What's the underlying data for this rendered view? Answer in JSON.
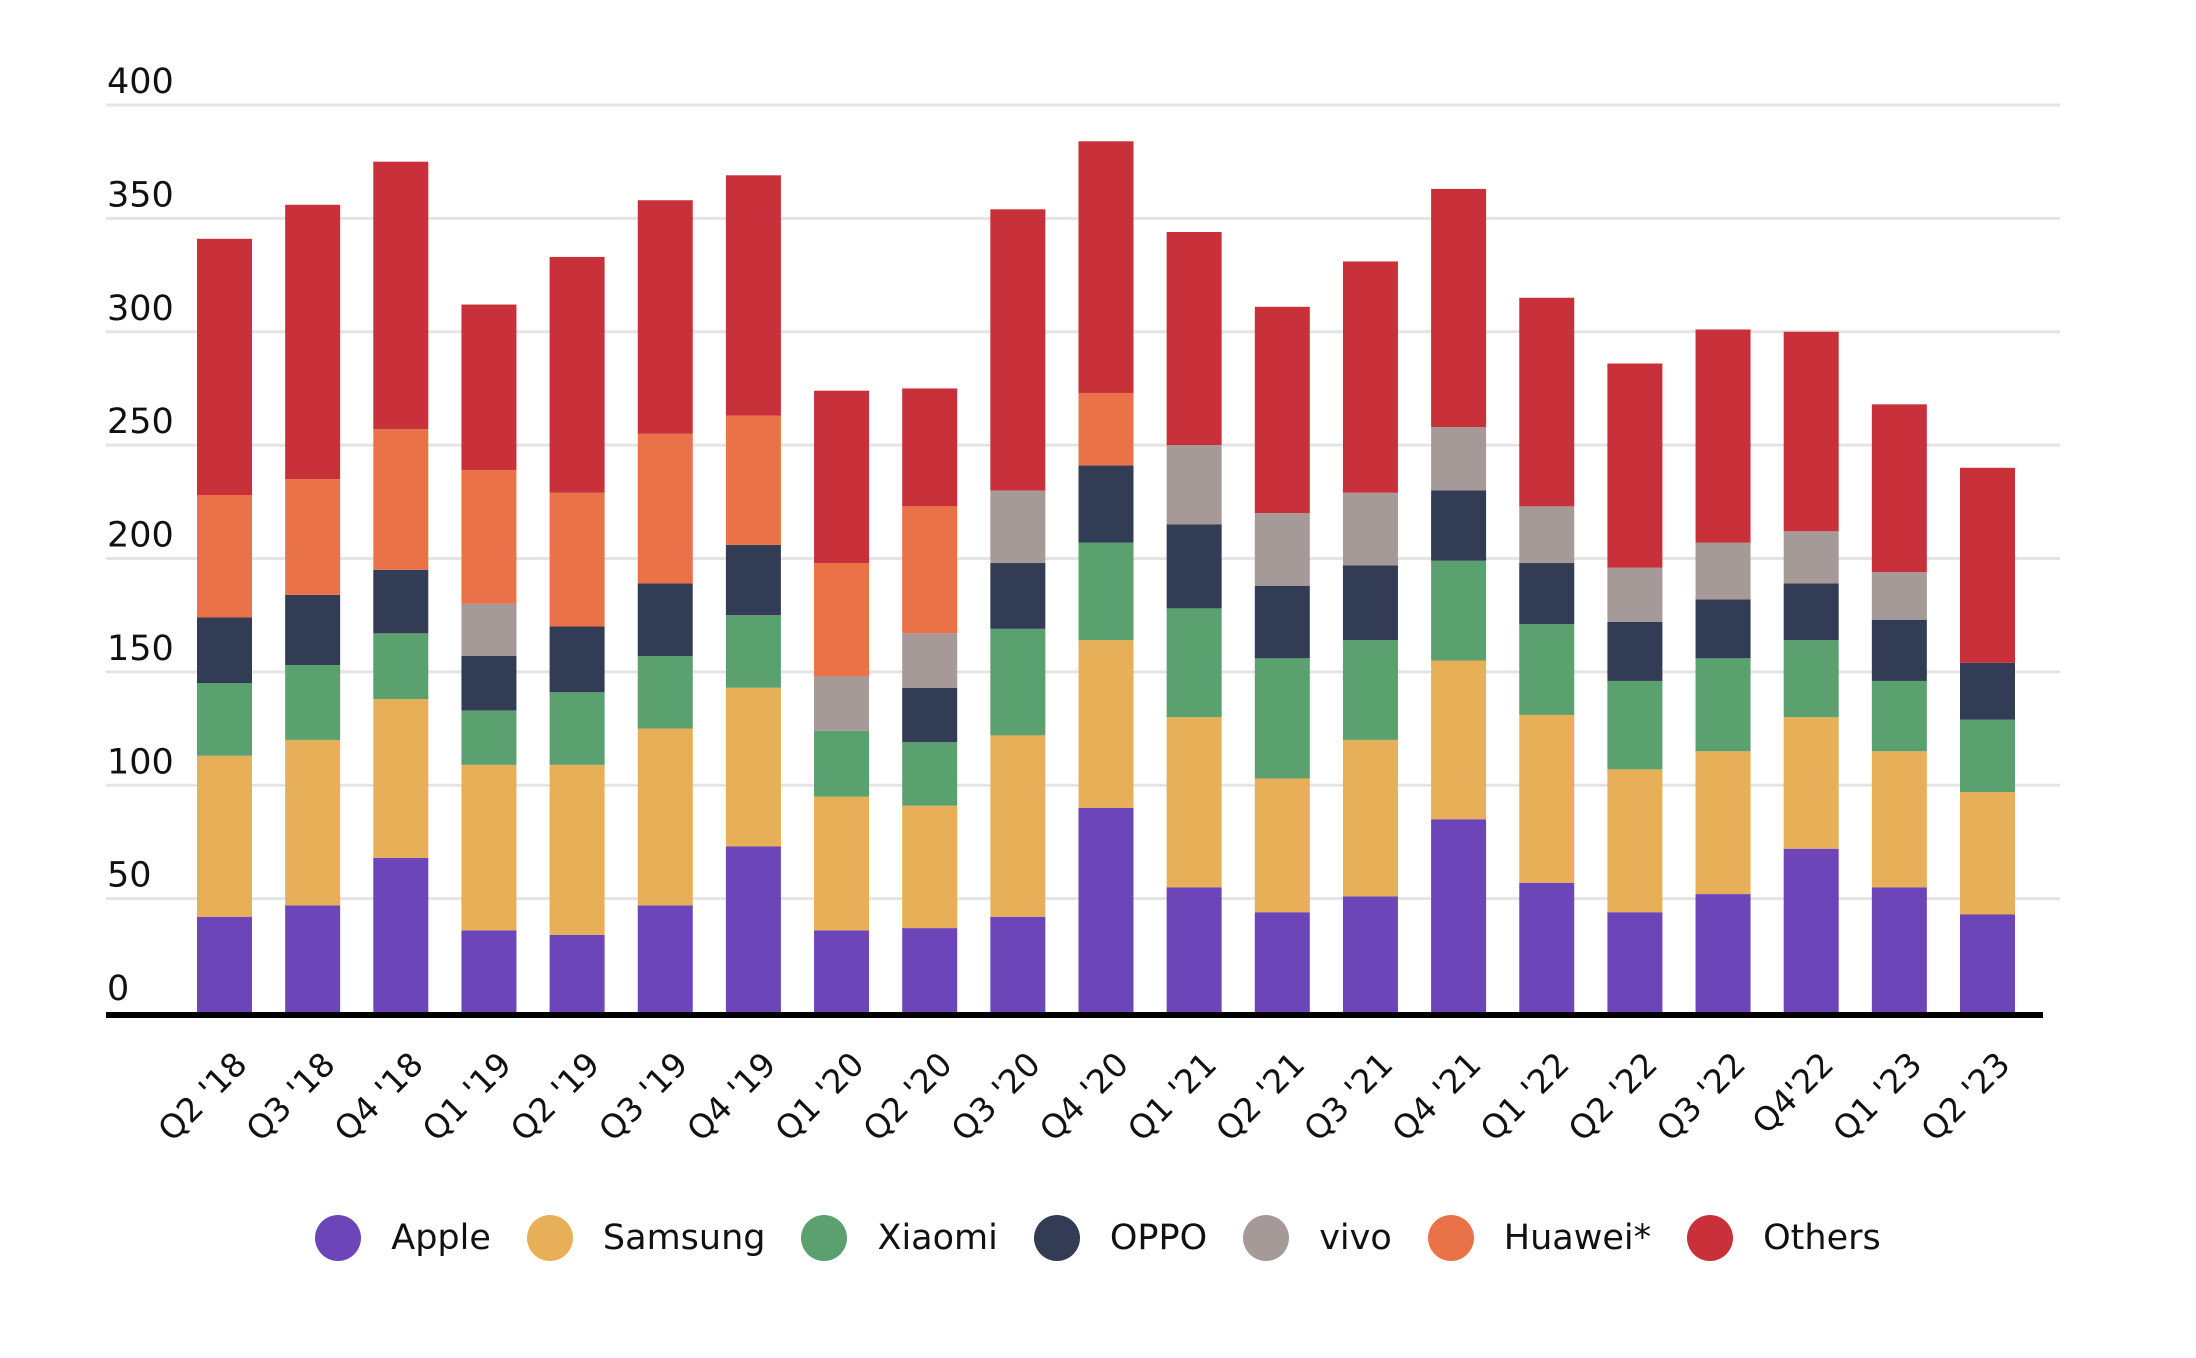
{
  "chart_data": {
    "type": "bar",
    "stacked": true,
    "title": "",
    "xlabel": "",
    "ylabel": "",
    "ylim": [
      0,
      400
    ],
    "yticks": [
      0,
      50,
      100,
      150,
      200,
      250,
      300,
      350,
      400
    ],
    "grid": true,
    "legend_position": "bottom-center",
    "categories": [
      "Q2 '18",
      "Q3 '18",
      "Q4 '18",
      "Q1 '19",
      "Q2 '19",
      "Q3 '19",
      "Q4 '19",
      "Q1 '20",
      "Q2 '20",
      "Q3 '20",
      "Q4 '20",
      "Q1 '21",
      "Q2 '21",
      "Q3 '21",
      "Q4 '21",
      "Q1 '22",
      "Q2 '22",
      "Q3 '22",
      "Q4'22",
      "Q1 '23",
      "Q2 '23"
    ],
    "series": [
      {
        "name": "Apple",
        "color": "#6C45B8",
        "values": [
          42,
          47,
          68,
          36,
          34,
          47,
          73,
          36,
          37,
          42,
          90,
          55,
          44,
          51,
          85,
          57,
          44,
          52,
          72,
          55,
          43
        ]
      },
      {
        "name": "Samsung",
        "color": "#E7AF57",
        "values": [
          71,
          73,
          70,
          73,
          75,
          78,
          70,
          59,
          54,
          80,
          74,
          75,
          59,
          69,
          70,
          74,
          63,
          63,
          58,
          60,
          54
        ]
      },
      {
        "name": "Xiaomi",
        "color": "#5BA06F",
        "values": [
          32,
          33,
          29,
          24,
          32,
          32,
          32,
          29,
          28,
          47,
          43,
          48,
          53,
          44,
          44,
          40,
          39,
          41,
          34,
          31,
          32
        ]
      },
      {
        "name": "OPPO",
        "color": "#323C55",
        "values": [
          29,
          31,
          28,
          24,
          29,
          32,
          31,
          0,
          24,
          29,
          34,
          37,
          32,
          33,
          31,
          27,
          26,
          26,
          25,
          27,
          25
        ]
      },
      {
        "name": "vivo",
        "color": "#A59A98",
        "values": [
          0,
          0,
          0,
          23,
          0,
          0,
          0,
          24,
          24,
          32,
          0,
          35,
          32,
          32,
          28,
          25,
          24,
          25,
          23,
          21,
          0
        ]
      },
      {
        "name": "Huawei*",
        "color": "#EA7249",
        "values": [
          54,
          51,
          62,
          59,
          59,
          66,
          57,
          50,
          56,
          0,
          32,
          0,
          0,
          0,
          0,
          0,
          0,
          0,
          0,
          0,
          0
        ]
      },
      {
        "name": "Others",
        "color": "#C8303A",
        "values": [
          113,
          121,
          118,
          73,
          104,
          103,
          106,
          76,
          52,
          124,
          111,
          94,
          91,
          102,
          105,
          92,
          90,
          94,
          88,
          74,
          86
        ]
      }
    ]
  },
  "legend": {
    "items": [
      {
        "label": "Apple",
        "color": "#6C45B8"
      },
      {
        "label": "Samsung",
        "color": "#E7AF57"
      },
      {
        "label": "Xiaomi",
        "color": "#5BA06F"
      },
      {
        "label": "OPPO",
        "color": "#323C55"
      },
      {
        "label": "vivo",
        "color": "#A59A98"
      },
      {
        "label": "Huawei*",
        "color": "#EA7249"
      },
      {
        "label": "Others",
        "color": "#C8303A"
      }
    ]
  }
}
